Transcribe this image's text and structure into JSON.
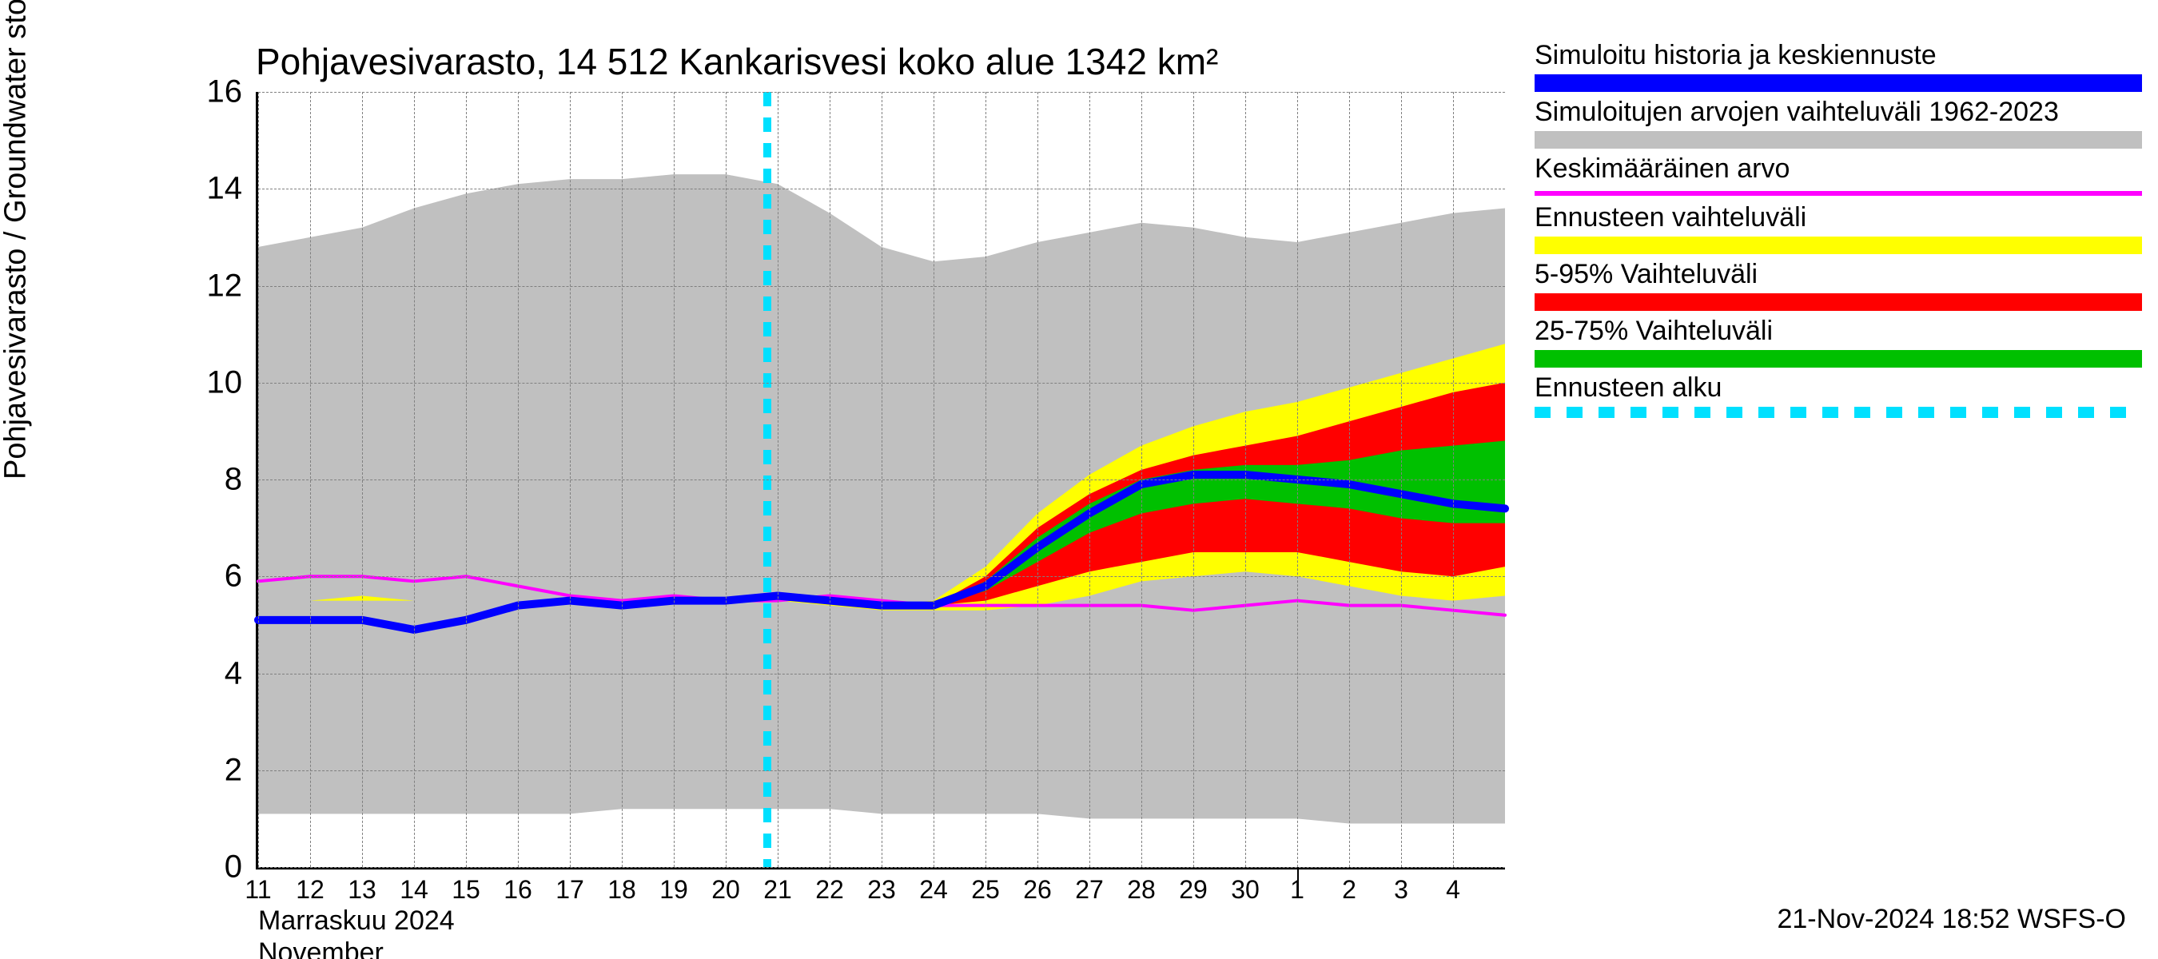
{
  "title": "Pohjavesivarasto, 14 512 Kankarisvesi koko alue 1342 km²",
  "yaxis_label": "Pohjavesivarasto / Groundwater storage    mm",
  "xaxis_month_fi": "Marraskuu 2024",
  "xaxis_month_en": "November",
  "footer": "21-Nov-2024 18:52 WSFS-O",
  "ylim": [
    0,
    16
  ],
  "yticks": [
    0,
    2,
    4,
    6,
    8,
    10,
    12,
    14,
    16
  ],
  "xticks": [
    "11",
    "12",
    "13",
    "14",
    "15",
    "16",
    "17",
    "18",
    "19",
    "20",
    "21",
    "22",
    "23",
    "24",
    "25",
    "26",
    "27",
    "28",
    "29",
    "30",
    "1",
    "2",
    "3",
    "4"
  ],
  "n_x": 25,
  "forecast_start_index": 9.8,
  "month_divider_index": 20,
  "colors": {
    "background": "#ffffff",
    "grid": "#808080",
    "axis": "#000000",
    "historical_range": "#c0c0c0",
    "blue_line": "#0000ff",
    "mean_line": "#ff00ff",
    "forecast_range": "#ffff00",
    "range_5_95": "#ff0000",
    "range_25_75": "#00c000",
    "forecast_start": "#00e0ff"
  },
  "legend": [
    {
      "label": "Simuloitu historia ja keskiennuste",
      "color": "#0000ff",
      "style": "solid"
    },
    {
      "label": "Simuloitujen arvojen vaihteluväli 1962-2023",
      "color": "#c0c0c0",
      "style": "solid"
    },
    {
      "label": "Keskimääräinen arvo",
      "color": "#ff00ff",
      "style": "thin"
    },
    {
      "label": "Ennusteen vaihteluväli",
      "color": "#ffff00",
      "style": "solid"
    },
    {
      "label": "5-95% Vaihteluväli",
      "color": "#ff0000",
      "style": "solid"
    },
    {
      "label": "25-75% Vaihteluväli",
      "color": "#00c000",
      "style": "solid"
    },
    {
      "label": "Ennusteen alku",
      "color": "#00e0ff",
      "style": "dashed"
    }
  ],
  "series": {
    "hist_upper": [
      12.8,
      13.0,
      13.2,
      13.6,
      13.9,
      14.1,
      14.2,
      14.2,
      14.3,
      14.3,
      14.1,
      13.5,
      12.8,
      12.5,
      12.6,
      12.9,
      13.1,
      13.3,
      13.2,
      13.0,
      12.9,
      13.1,
      13.3,
      13.5,
      13.6
    ],
    "hist_lower": [
      1.1,
      1.1,
      1.1,
      1.1,
      1.1,
      1.1,
      1.1,
      1.2,
      1.2,
      1.2,
      1.2,
      1.2,
      1.1,
      1.1,
      1.1,
      1.1,
      1.0,
      1.0,
      1.0,
      1.0,
      1.0,
      0.9,
      0.9,
      0.9,
      0.9
    ],
    "yellow_upper": [
      5.4,
      5.5,
      5.6,
      5.5,
      5.5,
      5.5,
      5.5,
      5.5,
      5.5,
      5.5,
      5.6,
      5.5,
      5.4,
      5.5,
      6.2,
      7.3,
      8.1,
      8.7,
      9.1,
      9.4,
      9.6,
      9.9,
      10.2,
      10.5,
      10.8
    ],
    "yellow_lower": [
      5.4,
      5.5,
      5.5,
      5.5,
      5.5,
      5.5,
      5.5,
      5.5,
      5.5,
      5.5,
      5.5,
      5.4,
      5.3,
      5.3,
      5.3,
      5.4,
      5.6,
      5.9,
      6.0,
      6.1,
      6.0,
      5.8,
      5.6,
      5.5,
      5.6
    ],
    "red_upper": [
      5.4,
      5.5,
      5.5,
      5.5,
      5.5,
      5.5,
      5.5,
      5.5,
      5.5,
      5.5,
      5.5,
      5.4,
      5.4,
      5.4,
      6.0,
      7.0,
      7.7,
      8.2,
      8.5,
      8.7,
      8.9,
      9.2,
      9.5,
      9.8,
      10.0
    ],
    "red_lower": [
      5.4,
      5.5,
      5.5,
      5.5,
      5.5,
      5.5,
      5.5,
      5.5,
      5.5,
      5.5,
      5.5,
      5.4,
      5.4,
      5.4,
      5.5,
      5.8,
      6.1,
      6.3,
      6.5,
      6.5,
      6.5,
      6.3,
      6.1,
      6.0,
      6.2
    ],
    "green_upper": [
      5.4,
      5.5,
      5.5,
      5.5,
      5.5,
      5.5,
      5.5,
      5.5,
      5.5,
      5.5,
      5.5,
      5.4,
      5.4,
      5.4,
      5.9,
      6.8,
      7.5,
      8.0,
      8.2,
      8.3,
      8.3,
      8.4,
      8.6,
      8.7,
      8.8
    ],
    "green_lower": [
      5.4,
      5.5,
      5.5,
      5.5,
      5.5,
      5.5,
      5.5,
      5.5,
      5.5,
      5.5,
      5.5,
      5.4,
      5.4,
      5.4,
      5.7,
      6.3,
      6.9,
      7.3,
      7.5,
      7.6,
      7.5,
      7.4,
      7.2,
      7.1,
      7.1
    ],
    "blue": [
      5.1,
      5.1,
      5.1,
      4.9,
      5.1,
      5.4,
      5.5,
      5.4,
      5.5,
      5.5,
      5.6,
      5.5,
      5.4,
      5.4,
      5.8,
      6.6,
      7.3,
      7.9,
      8.1,
      8.1,
      8.0,
      7.9,
      7.7,
      7.5,
      7.4
    ],
    "mean": [
      5.9,
      6.0,
      6.0,
      5.9,
      6.0,
      5.8,
      5.6,
      5.5,
      5.6,
      5.5,
      5.5,
      5.6,
      5.5,
      5.4,
      5.4,
      5.4,
      5.4,
      5.4,
      5.3,
      5.4,
      5.5,
      5.4,
      5.4,
      5.3,
      5.2
    ]
  },
  "line_widths": {
    "blue": 10,
    "mean": 4
  },
  "font_sizes": {
    "title": 46,
    "axis": 38,
    "tick": 40,
    "xtick": 32,
    "legend": 34
  }
}
